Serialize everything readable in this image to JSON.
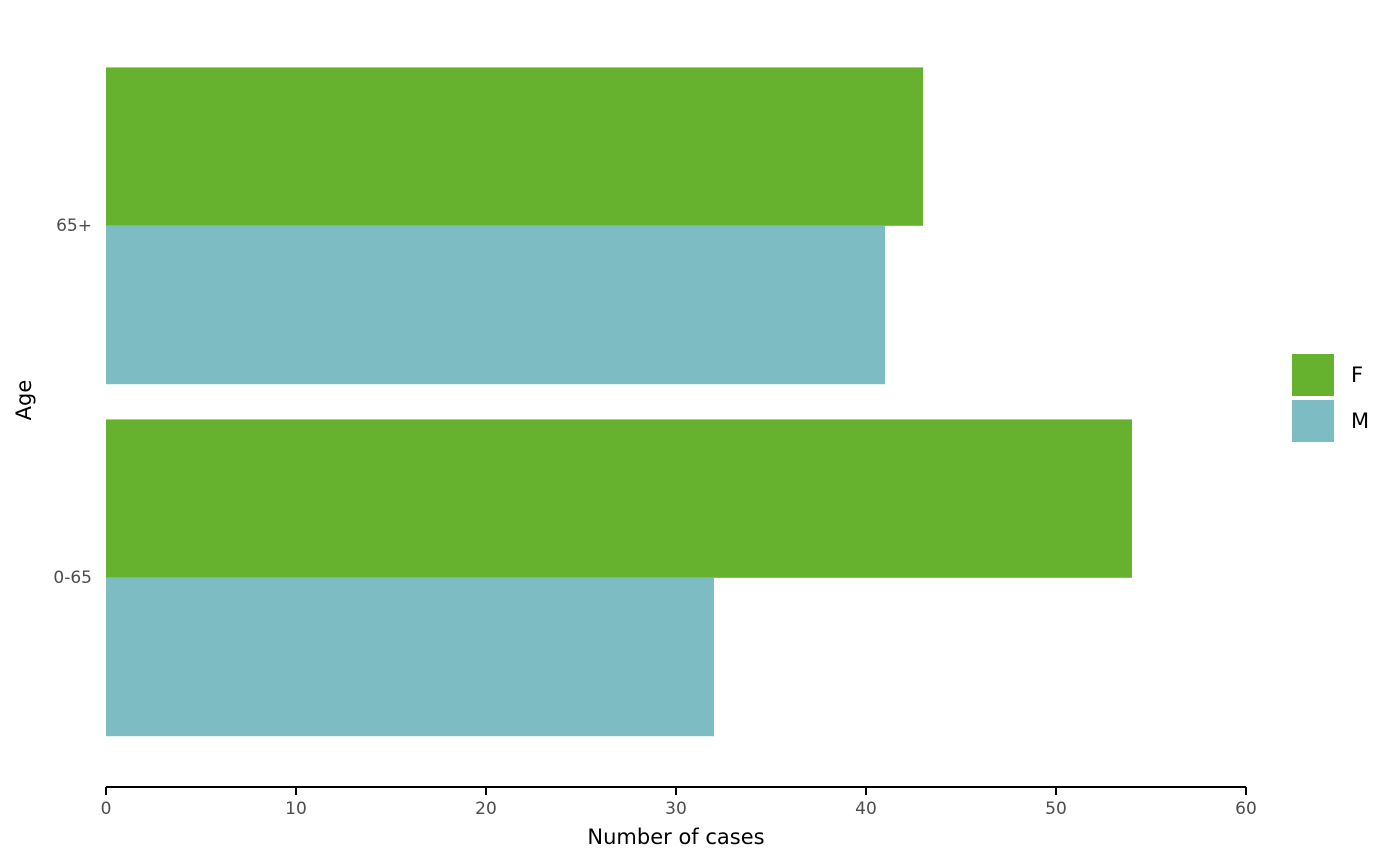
{
  "chart_data": {
    "type": "barh",
    "x_label": "Number of cases",
    "y_label": "Age",
    "categories": [
      "0-65",
      "65+"
    ],
    "series": [
      {
        "name": "F",
        "color": "#66b22f",
        "values": [
          54,
          43
        ]
      },
      {
        "name": "M",
        "color": "#7dbcc3",
        "values": [
          32,
          41
        ]
      }
    ],
    "xlim": [
      0,
      60
    ],
    "xticks": [
      0,
      10,
      20,
      30,
      40,
      50,
      60
    ],
    "legend": "right"
  }
}
